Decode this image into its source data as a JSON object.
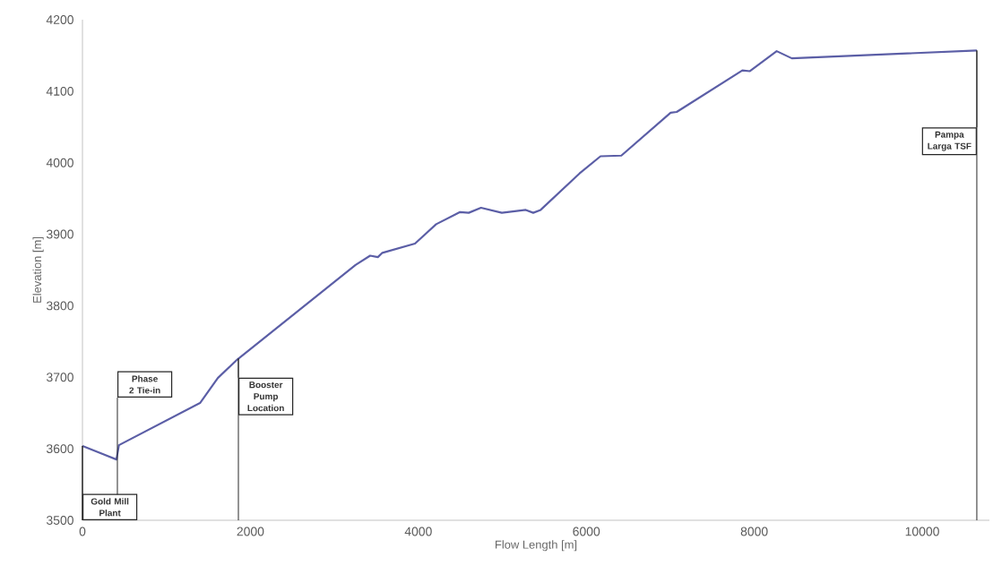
{
  "chart_data": {
    "type": "line",
    "xlabel": "Flow Length [m]",
    "ylabel": "Elevation [m]",
    "xlim": [
      0,
      10800
    ],
    "ylim": [
      3500,
      4200
    ],
    "xticks": [
      0,
      2000,
      4000,
      6000,
      8000,
      10000
    ],
    "yticks": [
      3500,
      3600,
      3700,
      3800,
      3900,
      4000,
      4100,
      4200
    ],
    "grid": false,
    "marker": "none",
    "line_style": "solid",
    "series": [
      {
        "color": "#5b5ea6",
        "x": [
          0,
          405,
          434,
          1400,
          1612,
          1846,
          3252,
          3426,
          3518,
          3571,
          3960,
          4212,
          4497,
          4600,
          4746,
          4994,
          5279,
          5368,
          5456,
          5919,
          6169,
          6417,
          7004,
          7076,
          7858,
          7948,
          8267,
          8447,
          10650
        ],
        "values": [
          3604,
          3585,
          3605,
          3664,
          3699,
          3725,
          3857,
          3870,
          3868,
          3874,
          3887,
          3914,
          3931,
          3930,
          3937,
          3930,
          3934,
          3930,
          3934,
          3985,
          4009,
          4010,
          4070,
          4071,
          4129,
          4128,
          4156,
          4146,
          4157
        ]
      }
    ],
    "ref_lines": [
      {
        "axis": "x",
        "value": 0,
        "label": "Gold Mill Plant",
        "color": "#262626"
      },
      {
        "axis": "x",
        "value": 416,
        "label": "Phase 2 Tie-in",
        "color": "#262626"
      },
      {
        "axis": "x",
        "value": 1857,
        "label": "Booster Pump Location",
        "color": "#262626"
      },
      {
        "axis": "x",
        "value": 10650,
        "label": "Pampa Larga TSF",
        "color": "#262626"
      }
    ]
  }
}
